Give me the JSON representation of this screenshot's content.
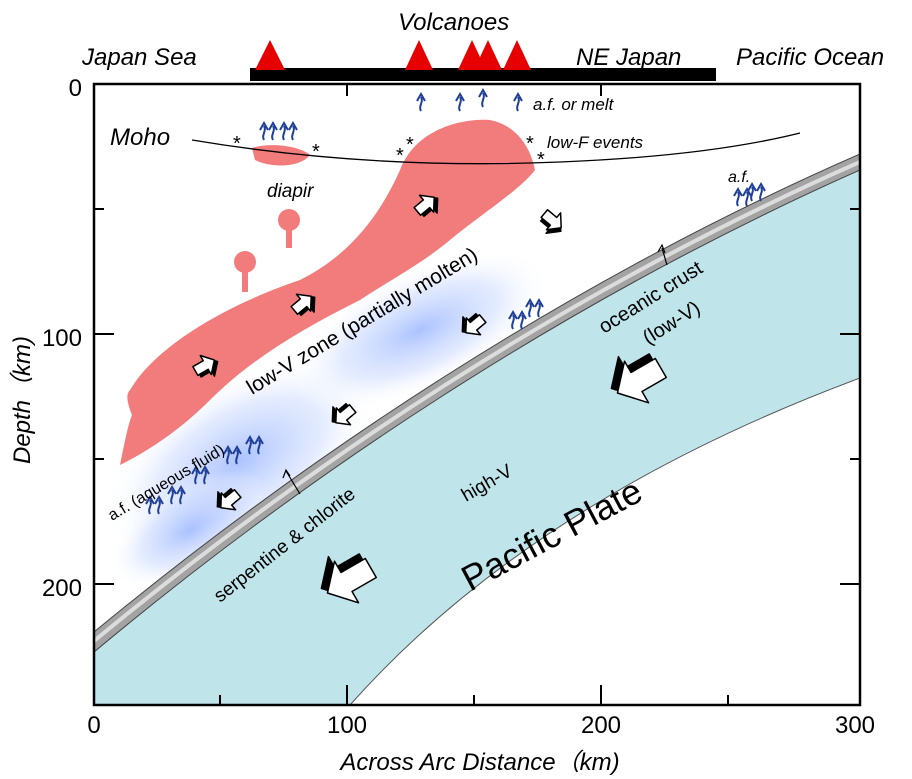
{
  "colors": {
    "plate": "#bfe4ea",
    "crust": "#a3a3a3",
    "crust_edge": "#dcdcdc",
    "melt": "#f27c7c",
    "volcano": "#e60000",
    "fluid_arrow": "#1f3f99",
    "blue_glow": "#9db8ff"
  },
  "top_labels": {
    "japan_sea": "Japan Sea",
    "volcanoes": "Volcanoes",
    "ne_japan": "NE Japan",
    "pacific_ocean": "Pacific Ocean"
  },
  "axes": {
    "x_label": "Across Arc Distance（km)",
    "y_label": "Depth（km)",
    "x_range": [
      0,
      300
    ],
    "y_range": [
      0,
      250
    ],
    "x_ticks": [
      "0",
      "100",
      "200",
      "300"
    ],
    "y_ticks": [
      "0",
      "100",
      "200"
    ]
  },
  "annotations": {
    "moho": "Moho",
    "af_or_melt": "a.f. or melt",
    "low_f_events": "low-F events",
    "diapir": "diapir",
    "af_right": "a.f.",
    "low_v_zone": "low-V zone (partially molten)",
    "oceanic_crust_1": "oceanic crust",
    "oceanic_crust_2": "(low-V)",
    "af_aqueous": "a.f. (aqueous fluid)",
    "serpentine": "serpentine & chlorite",
    "high_v": "high-V",
    "pacific_plate": "Pacific Plate"
  },
  "low_f_event_marker": "*"
}
